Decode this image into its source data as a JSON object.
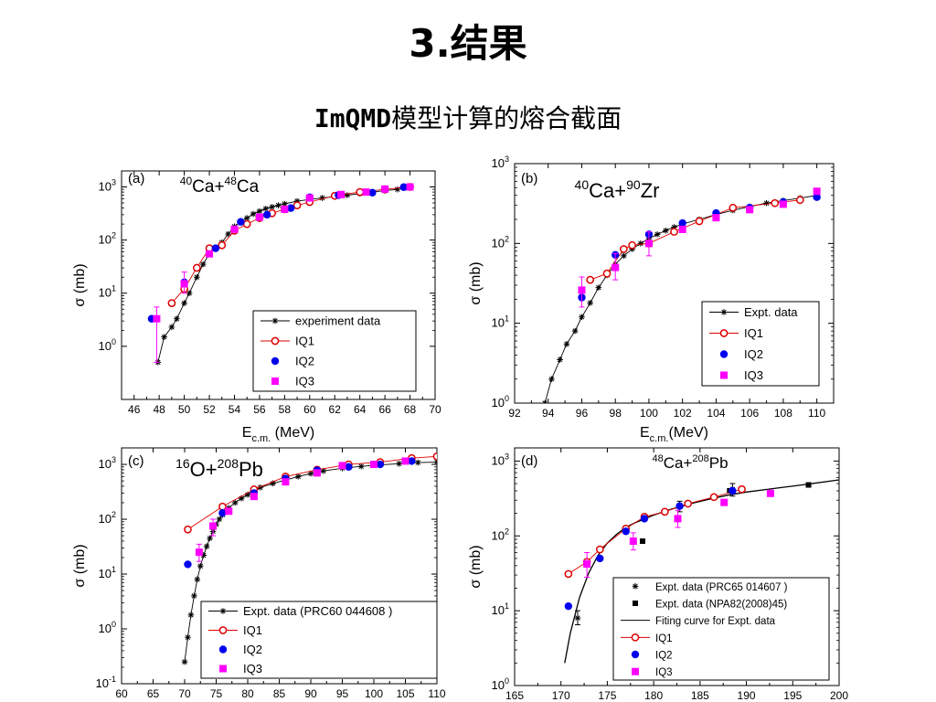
{
  "page": {
    "title": "3.结果",
    "subtitle_code": "ImQMD",
    "subtitle_rest": "模型计算的熔合截面"
  },
  "chart_data": [
    {
      "id": "a",
      "panel_label": "(a)",
      "type": "scatter",
      "title": "40Ca+48Ca",
      "title_parts": [
        [
          "40",
          "sup"
        ],
        [
          "Ca+",
          ""
        ],
        [
          "48",
          "sup"
        ],
        [
          "Ca",
          ""
        ]
      ],
      "xlabel": "E",
      "xlabel_sub": "c.m.",
      "xlabel_unit": " (MeV)",
      "ylabel": "σ (mb)",
      "xlim": [
        45,
        70
      ],
      "ylim": [
        0.1,
        2000
      ],
      "y_scale": "log",
      "x_ticks": [
        46,
        48,
        50,
        52,
        54,
        56,
        58,
        60,
        62,
        64,
        66,
        68,
        70
      ],
      "y_ticks": [
        [
          "10",
          "0",
          1
        ],
        [
          "10",
          "1",
          10
        ],
        [
          "10",
          "2",
          100
        ],
        [
          "10",
          "3",
          1000
        ]
      ],
      "legend": [
        "experiment data",
        "IQ1",
        "IQ2",
        "IQ3"
      ],
      "series": [
        {
          "name": "experiment data",
          "style": "star-line",
          "color": "#000000",
          "x": [
            47.9,
            48.4,
            49,
            49.4,
            50,
            50.4,
            51,
            51.5,
            52,
            52.5,
            53,
            53.5,
            54,
            54.5,
            55,
            55.5,
            56,
            56.5,
            57,
            57.5,
            58,
            59,
            60,
            61,
            62,
            63,
            64,
            65,
            66,
            67
          ],
          "y": [
            0.5,
            1.5,
            2.3,
            3.3,
            6.5,
            10,
            20,
            35,
            55,
            70,
            90,
            130,
            180,
            220,
            260,
            310,
            350,
            390,
            420,
            450,
            480,
            540,
            580,
            620,
            660,
            700,
            750,
            800,
            850,
            900
          ]
        },
        {
          "name": "IQ1",
          "style": "open-circle-line",
          "color": "#dd0000",
          "x": [
            49,
            50,
            51,
            52,
            53,
            54,
            55,
            56,
            57,
            58,
            59,
            60,
            62,
            64,
            66,
            68
          ],
          "y": [
            6.5,
            12,
            30,
            70,
            80,
            150,
            200,
            260,
            320,
            380,
            450,
            520,
            680,
            800,
            900,
            1000
          ]
        },
        {
          "name": "IQ2",
          "style": "filled-circle",
          "color": "#0000ee",
          "x": [
            47.4,
            50,
            52.5,
            54.5,
            56.6,
            58.5,
            60,
            62.3,
            65,
            67.5
          ],
          "y": [
            3.3,
            16,
            70,
            220,
            300,
            400,
            640,
            700,
            780,
            990
          ]
        },
        {
          "name": "IQ3",
          "style": "filled-square",
          "color": "#ff00ff",
          "x": [
            47.8,
            50,
            52,
            54,
            56,
            58,
            60,
            62.5,
            64.5,
            66,
            68
          ],
          "y": [
            3.3,
            15,
            55,
            160,
            270,
            380,
            620,
            720,
            800,
            910,
            1000
          ],
          "err": [
            [
              47.8,
              0.5,
              5.5
            ],
            [
              50,
              10,
              25
            ]
          ]
        }
      ]
    },
    {
      "id": "b",
      "panel_label": "(b)",
      "type": "scatter",
      "title": "40Ca+90Zr",
      "title_parts": [
        [
          "40",
          "sup"
        ],
        [
          "Ca+",
          ""
        ],
        [
          "90",
          "sup"
        ],
        [
          "Zr",
          ""
        ]
      ],
      "xlabel": "E",
      "xlabel_sub": "c.m.",
      "xlabel_unit": "(MeV)",
      "ylabel": "σ (mb)",
      "xlim": [
        92,
        111
      ],
      "ylim": [
        1,
        1000
      ],
      "y_scale": "log",
      "x_ticks": [
        92,
        94,
        96,
        98,
        100,
        102,
        104,
        106,
        108,
        110
      ],
      "y_ticks": [
        [
          "10",
          "0",
          1
        ],
        [
          "10",
          "1",
          10
        ],
        [
          "10",
          "2",
          100
        ],
        [
          "10",
          "3",
          1000
        ]
      ],
      "legend": [
        "Expt. data",
        "IQ1",
        "IQ2",
        "IQ3"
      ],
      "series": [
        {
          "name": "Expt. data",
          "style": "star-line",
          "color": "#000000",
          "x": [
            93.8,
            94.2,
            94.7,
            95.1,
            95.6,
            96.0,
            96.5,
            97,
            97.5,
            98,
            98.5,
            99,
            99.5,
            100,
            100.5,
            101,
            101.5,
            102,
            103,
            104,
            105,
            106,
            107,
            108,
            109,
            110
          ],
          "y": [
            1,
            2,
            3.5,
            5.5,
            8,
            12,
            18,
            28,
            40,
            55,
            70,
            85,
            100,
            115,
            130,
            145,
            160,
            175,
            200,
            230,
            260,
            290,
            320,
            345,
            370,
            400
          ]
        },
        {
          "name": "IQ1",
          "style": "open-circle-line",
          "color": "#dd0000",
          "x": [
            96.5,
            97.5,
            98.5,
            99,
            100,
            101.5,
            103,
            105,
            107.5,
            109
          ],
          "y": [
            35,
            42,
            85,
            95,
            100,
            140,
            190,
            280,
            320,
            350
          ]
        },
        {
          "name": "IQ2",
          "style": "filled-circle",
          "color": "#0000ee",
          "x": [
            96,
            98,
            100,
            102,
            104,
            106,
            108,
            110
          ],
          "y": [
            21,
            72,
            130,
            180,
            240,
            280,
            330,
            380
          ]
        },
        {
          "name": "IQ3",
          "style": "filled-square",
          "color": "#ff00ff",
          "x": [
            96,
            98,
            100,
            102,
            104,
            106,
            108,
            110
          ],
          "y": [
            26,
            50,
            100,
            150,
            210,
            265,
            310,
            450
          ],
          "err": [
            [
              96,
              16,
              38
            ],
            [
              98,
              35,
              75
            ],
            [
              100,
              70,
              140
            ]
          ]
        }
      ]
    },
    {
      "id": "c",
      "panel_label": "(c)",
      "type": "scatter",
      "title": "16O+208Pb",
      "title_parts": [
        [
          "16",
          "sup"
        ],
        [
          "O+",
          ""
        ],
        [
          "208",
          "sup"
        ],
        [
          "Pb",
          ""
        ]
      ],
      "xlabel": "",
      "ylabel": "σ (mb)",
      "xlim": [
        60,
        110
      ],
      "ylim": [
        0.1,
        2000
      ],
      "y_scale": "log",
      "x_ticks": [
        60,
        65,
        70,
        75,
        80,
        85,
        90,
        95,
        100,
        105,
        110
      ],
      "y_ticks": [
        [
          "10",
          "-1",
          0.1
        ],
        [
          "10",
          "0",
          1
        ],
        [
          "10",
          "1",
          10
        ],
        [
          "10",
          "2",
          100
        ],
        [
          "10",
          "3",
          1000
        ]
      ],
      "legend": [
        "Expt. data (PRC60 044608 )",
        "IQ1",
        "IQ2",
        "IQ3"
      ],
      "series": [
        {
          "name": "Expt. data (PRC60 044608 )",
          "style": "star-line",
          "color": "#000000",
          "x": [
            70,
            70.5,
            71,
            71.5,
            72,
            72.5,
            73,
            73.5,
            74,
            74.5,
            75,
            75.5,
            76,
            77,
            78,
            79,
            80,
            81,
            82,
            84,
            86,
            88,
            90,
            92,
            95,
            98,
            101,
            104,
            107,
            110
          ],
          "y": [
            0.25,
            0.7,
            1.8,
            4,
            8,
            14,
            22,
            32,
            45,
            60,
            80,
            100,
            120,
            160,
            200,
            240,
            280,
            330,
            380,
            450,
            520,
            600,
            680,
            760,
            850,
            920,
            980,
            1030,
            1080,
            1100
          ]
        },
        {
          "name": "IQ1",
          "style": "open-circle-line",
          "color": "#dd0000",
          "x": [
            70.5,
            76,
            81,
            86,
            91,
            96,
            101,
            106,
            110
          ],
          "y": [
            65,
            170,
            350,
            600,
            800,
            1000,
            1100,
            1300,
            1400
          ]
        },
        {
          "name": "IQ2",
          "style": "filled-circle",
          "color": "#0000ee",
          "x": [
            70.5,
            76,
            81,
            86,
            91,
            96,
            101,
            106
          ],
          "y": [
            15,
            130,
            300,
            550,
            780,
            900,
            1000,
            1150
          ]
        },
        {
          "name": "IQ3",
          "style": "filled-square",
          "color": "#ff00ff",
          "x": [
            72.3,
            74.5,
            77,
            81,
            86,
            91,
            95,
            100,
            105
          ],
          "y": [
            25,
            75,
            140,
            260,
            480,
            700,
            950,
            1000,
            1150
          ],
          "err": [
            [
              72.3,
              17,
              35
            ],
            [
              74.5,
              50,
              100
            ]
          ]
        }
      ]
    },
    {
      "id": "d",
      "panel_label": "(d)",
      "type": "scatter",
      "title": "48Ca+208Pb",
      "title_parts": [
        [
          "48",
          "sup"
        ],
        [
          "Ca+",
          ""
        ],
        [
          "208",
          "sup"
        ],
        [
          "Pb",
          ""
        ]
      ],
      "xlabel": "",
      "ylabel": "σ (mb)",
      "xlim": [
        165,
        200
      ],
      "ylim": [
        1,
        1500
      ],
      "y_scale": "log",
      "x_ticks": [
        165,
        170,
        175,
        180,
        185,
        190,
        195,
        200
      ],
      "y_ticks": [
        [
          "10",
          "0",
          1
        ],
        [
          "10",
          "1",
          10
        ],
        [
          "10",
          "2",
          100
        ],
        [
          "10",
          "3",
          1000
        ]
      ],
      "legend": [
        "Expt. data (PRC65 014607 )",
        "Expt. data (NPA82(2008)45)",
        "Fiting curve for Expt. data",
        "IQ1",
        "IQ2",
        "IQ3"
      ],
      "series": [
        {
          "name": "Expt. data (PRC65 014607 )",
          "style": "star",
          "color": "#000000",
          "x": [
            171.8,
            182.8,
            188.5
          ],
          "y": [
            8,
            250,
            420
          ],
          "err": [
            [
              171.8,
              6.5,
              10
            ],
            [
              182.8,
              210,
              290
            ],
            [
              188.5,
              340,
              500
            ]
          ]
        },
        {
          "name": "Expt. data (NPA82(2008)45)",
          "style": "small-square",
          "color": "#000000",
          "x": [
            178.8,
            188.2,
            196.7
          ],
          "y": [
            85,
            400,
            480
          ]
        },
        {
          "name": "Fiting curve for Expt. data",
          "style": "curve",
          "color": "#000000",
          "x": [
            170.4,
            171,
            172,
            173,
            174,
            175,
            176,
            177,
            178,
            180,
            182,
            184,
            186,
            188,
            190,
            193,
            196,
            200
          ],
          "y": [
            2,
            5,
            15,
            32,
            55,
            80,
            105,
            130,
            150,
            190,
            230,
            270,
            310,
            350,
            385,
            430,
            480,
            560
          ]
        },
        {
          "name": "IQ1",
          "style": "open-circle-line",
          "color": "#dd0000",
          "x": [
            170.8,
            172.8,
            174.2,
            177,
            179,
            181.2,
            183.7,
            186.5,
            189.5
          ],
          "y": [
            31,
            45,
            66,
            125,
            180,
            210,
            270,
            330,
            420
          ]
        },
        {
          "name": "IQ2",
          "style": "filled-circle",
          "color": "#0000ee",
          "x": [
            170.8,
            174.2,
            177,
            179,
            182.8,
            188.5
          ],
          "y": [
            11.5,
            50,
            115,
            170,
            250,
            400
          ]
        },
        {
          "name": "IQ3",
          "style": "filled-square",
          "color": "#ff00ff",
          "x": [
            172.8,
            177.8,
            182.6,
            187.6,
            192.6
          ],
          "y": [
            42,
            85,
            170,
            280,
            370
          ],
          "err": [
            [
              172.8,
              28,
              60
            ],
            [
              177.8,
              65,
              110
            ],
            [
              182.6,
              130,
              220
            ]
          ]
        }
      ]
    }
  ]
}
